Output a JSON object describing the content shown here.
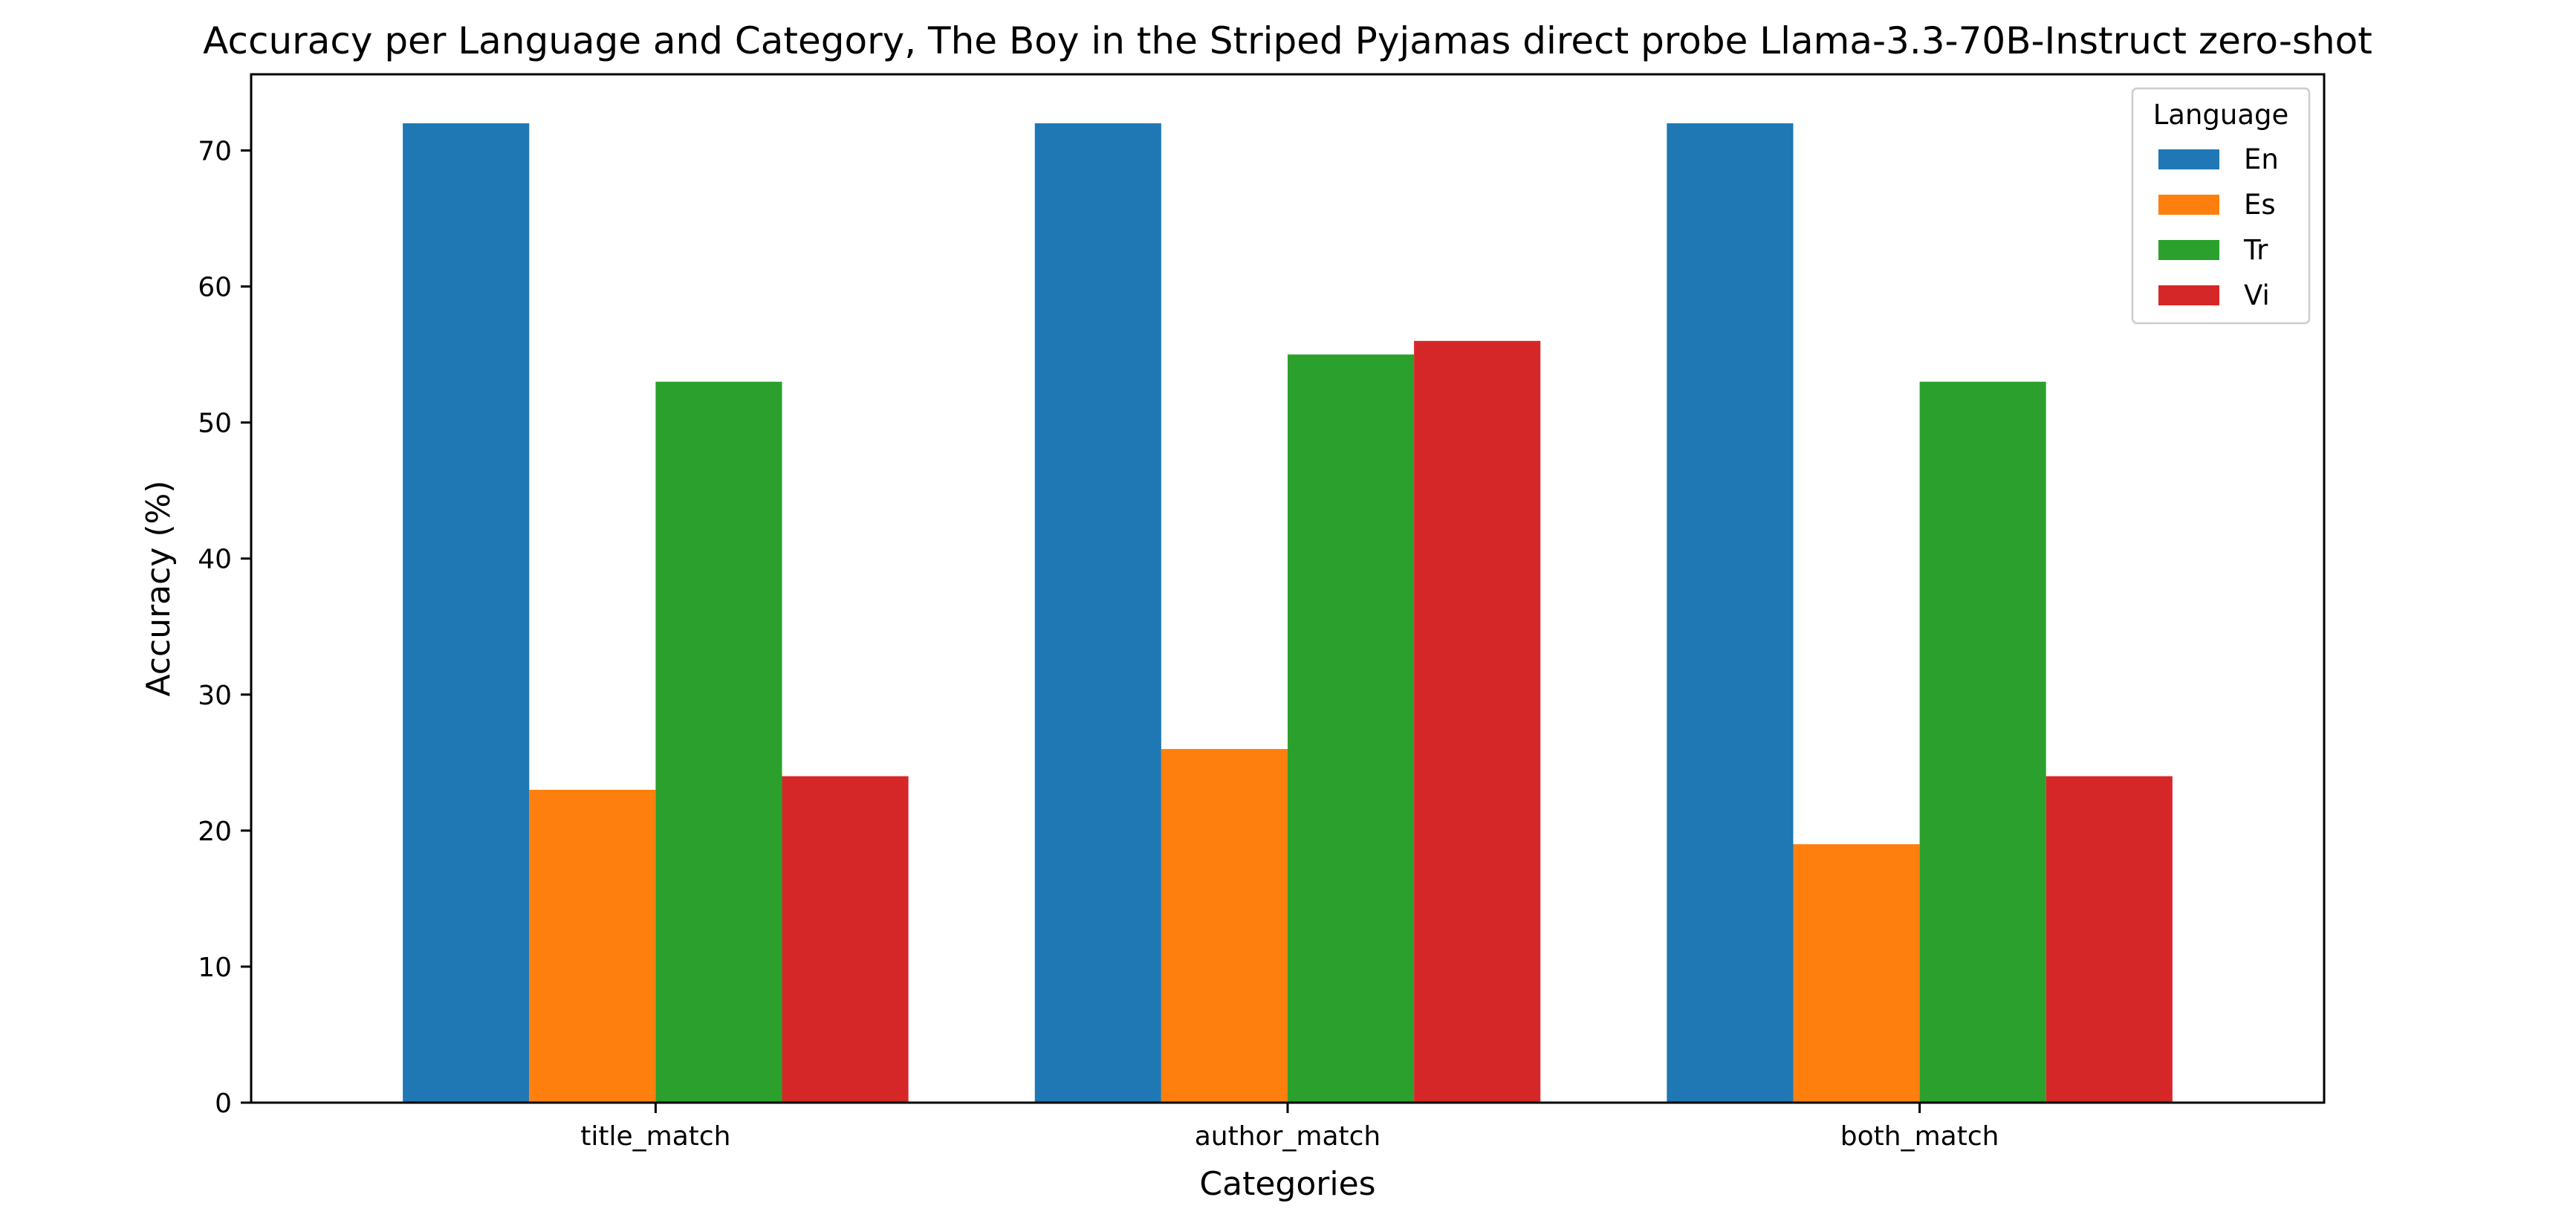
{
  "chart_data": {
    "type": "bar",
    "title": "Accuracy per Language and Category, The Boy in the Striped Pyjamas direct probe Llama-3.3-70B-Instruct zero-shot",
    "xlabel": "Categories",
    "ylabel": "Accuracy (%)",
    "categories": [
      "title_match",
      "author_match",
      "both_match"
    ],
    "series": [
      {
        "name": "En",
        "color": "#1f77b4",
        "values": [
          72,
          72,
          72
        ]
      },
      {
        "name": "Es",
        "color": "#ff7f0e",
        "values": [
          23,
          26,
          19
        ]
      },
      {
        "name": "Tr",
        "color": "#2ca02c",
        "values": [
          53,
          55,
          53
        ]
      },
      {
        "name": "Vi",
        "color": "#d62728",
        "values": [
          24,
          56,
          24
        ]
      }
    ],
    "ylim": [
      0,
      75.6
    ],
    "yticks": [
      0,
      10,
      20,
      30,
      40,
      50,
      60,
      70
    ],
    "grid": false,
    "legend": {
      "title": "Language",
      "position": "top-right"
    }
  }
}
